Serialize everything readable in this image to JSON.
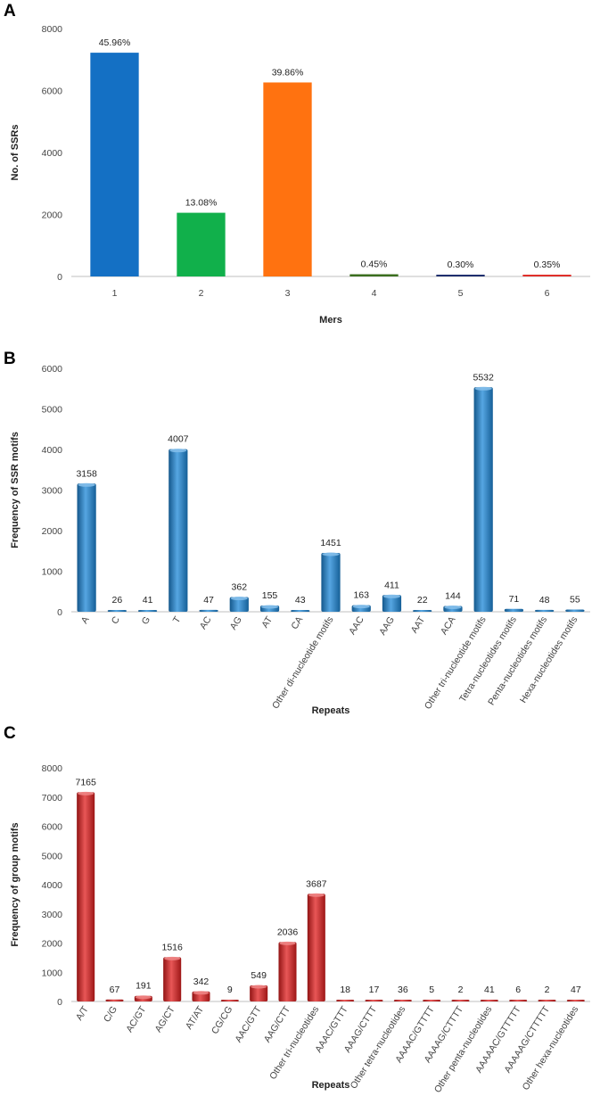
{
  "chart_data": [
    {
      "panel": "A",
      "type": "bar",
      "categories": [
        "1",
        "2",
        "3",
        "4",
        "5",
        "6"
      ],
      "values": [
        7220,
        2055,
        6260,
        71,
        47,
        55
      ],
      "labels": [
        "45.96%",
        "13.08%",
        "39.86%",
        "0.45%",
        "0.30%",
        "0.35%"
      ],
      "colors": [
        "#1470c4",
        "#11b04b",
        "#ff7210",
        "#3b6e1f",
        "#1f2f6e",
        "#e0302a"
      ],
      "xlabel": "Mers",
      "ylabel": "No. of SSRs",
      "ylim": [
        0,
        8000
      ],
      "yticks": [
        0,
        2000,
        4000,
        6000,
        8000
      ],
      "grid": false
    },
    {
      "panel": "B",
      "type": "bar",
      "categories": [
        "A",
        "C",
        "G",
        "T",
        "AC",
        "AG",
        "AT",
        "CA",
        "Other di-nucleotide motifs",
        "AAC",
        "AAG",
        "AAT",
        "ACA",
        "Other tri-nucleotide motifs",
        "Tetra-nucleotides motifs",
        "Penta-nucleotides motifs",
        "Hexa-nucleotides motifs"
      ],
      "values": [
        3158,
        26,
        41,
        4007,
        47,
        362,
        155,
        43,
        1451,
        163,
        411,
        22,
        144,
        5532,
        71,
        48,
        55
      ],
      "labels": [
        "3158",
        "26",
        "41",
        "4007",
        "47",
        "362",
        "155",
        "43",
        "1451",
        "163",
        "411",
        "22",
        "144",
        "5532",
        "71",
        "48",
        "55"
      ],
      "color": "#1e88d8",
      "xlabel": "Repeats",
      "ylabel": "Frequency of SSR motifs",
      "ylim": [
        0,
        6000
      ],
      "yticks": [
        0,
        1000,
        2000,
        3000,
        4000,
        5000,
        6000
      ],
      "grid": false
    },
    {
      "panel": "C",
      "type": "bar",
      "categories": [
        "A/T",
        "C/G",
        "AC/GT",
        "AG/CT",
        "AT/AT",
        "CG/CG",
        "AAC/GTT",
        "AAG/CTT",
        "Other tri-nucleotides",
        "AAAC/GTTT",
        "AAAG/CTTT",
        "Other tetra-nucleotides",
        "AAAAC/GTTTT",
        "AAAAG/CTTTT",
        "Other penta-nucleotides",
        "AAAAAC/GTTTTT",
        "AAAAAG/CTTTTT",
        "Other hexa-nucleotides"
      ],
      "values": [
        7165,
        67,
        191,
        1516,
        342,
        9,
        549,
        2036,
        3687,
        18,
        17,
        36,
        5,
        2,
        41,
        6,
        2,
        47
      ],
      "labels": [
        "7165",
        "67",
        "191",
        "1516",
        "342",
        "9",
        "549",
        "2036",
        "3687",
        "18",
        "17",
        "36",
        "5",
        "2",
        "41",
        "6",
        "2",
        "47"
      ],
      "color": "#e01f1f",
      "xlabel": "Repeats",
      "ylabel": "Frequency of group motifs",
      "ylim": [
        0,
        8000
      ],
      "yticks": [
        0,
        1000,
        2000,
        3000,
        4000,
        5000,
        6000,
        7000,
        8000
      ],
      "grid": false
    }
  ]
}
